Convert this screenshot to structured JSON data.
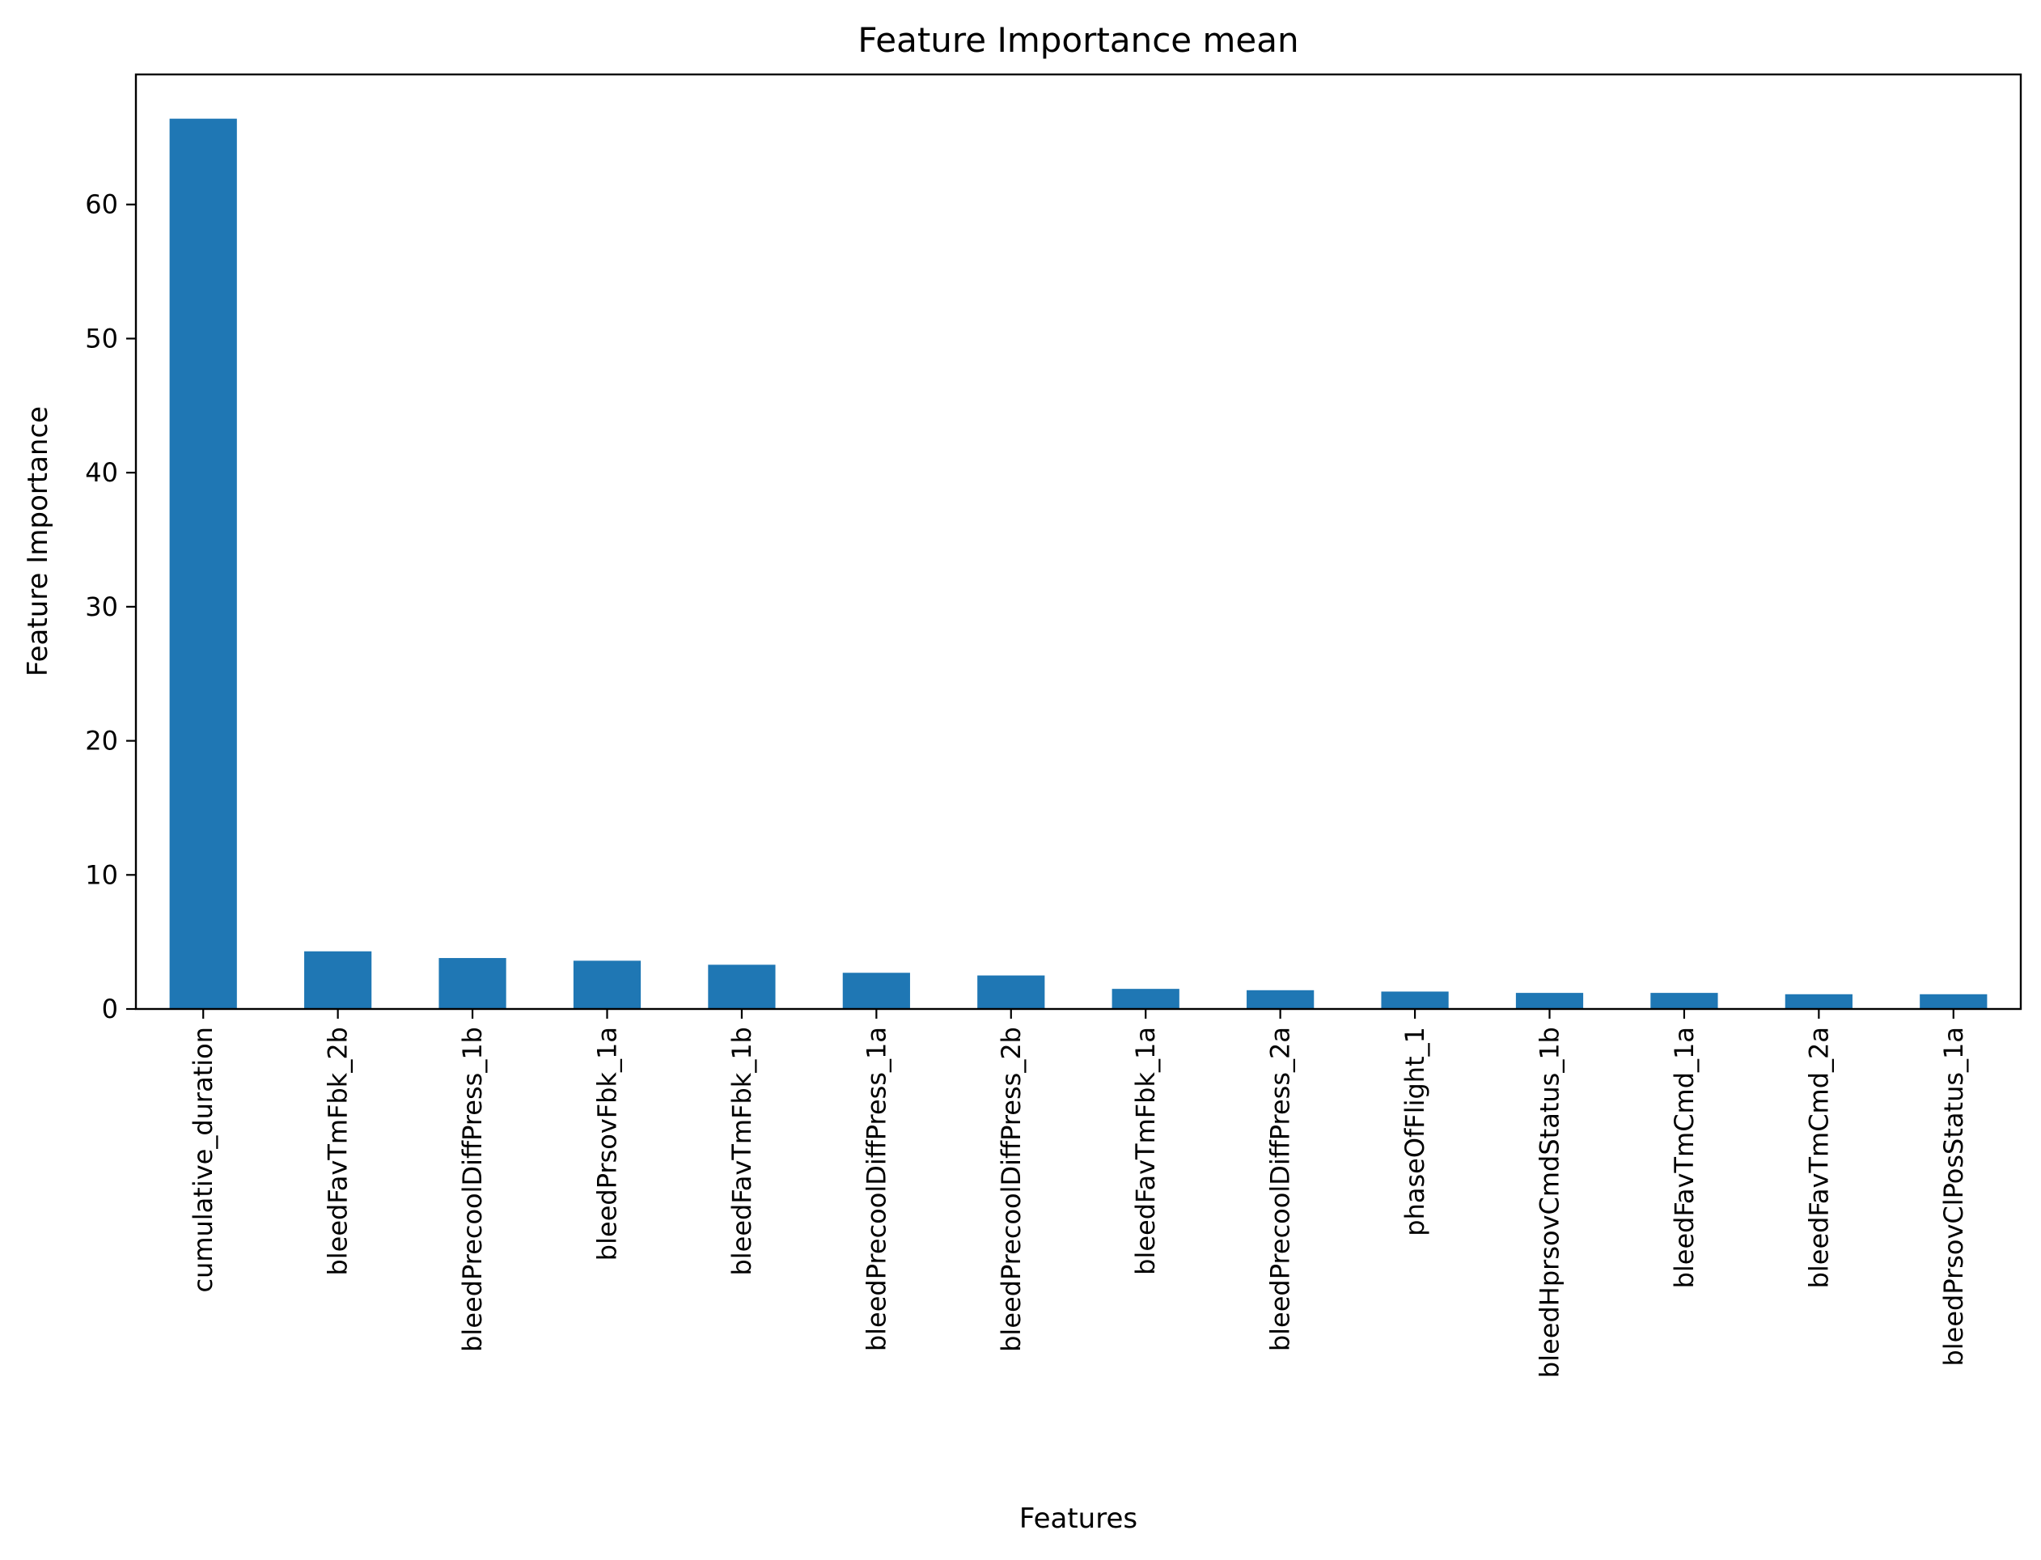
{
  "chart_data": {
    "type": "bar",
    "title": "Feature Importance mean",
    "xlabel": "Features",
    "ylabel": "Feature Importance",
    "categories": [
      "cumulative_duration",
      "bleedFavTmFbk_2b",
      "bleedPrecoolDiffPress_1b",
      "bleedPrsovFbk_1a",
      "bleedFavTmFbk_1b",
      "bleedPrecoolDiffPress_1a",
      "bleedPrecoolDiffPress_2b",
      "bleedFavTmFbk_1a",
      "bleedPrecoolDiffPress_2a",
      "phaseOfFlight_1",
      "bleedHprsovCmdStatus_1b",
      "bleedFavTmCmd_1a",
      "bleedFavTmCmd_2a",
      "bleedPrsovClPosStatus_1a"
    ],
    "values": [
      66.4,
      4.3,
      3.8,
      3.6,
      3.3,
      2.7,
      2.5,
      1.5,
      1.4,
      1.3,
      1.2,
      1.2,
      1.1,
      1.1
    ],
    "ylim": [
      0,
      69.7
    ],
    "yticks": [
      0,
      10,
      20,
      30,
      40,
      50,
      60
    ],
    "grid": false,
    "legend": "none",
    "bar_color": "#1f77b4"
  }
}
